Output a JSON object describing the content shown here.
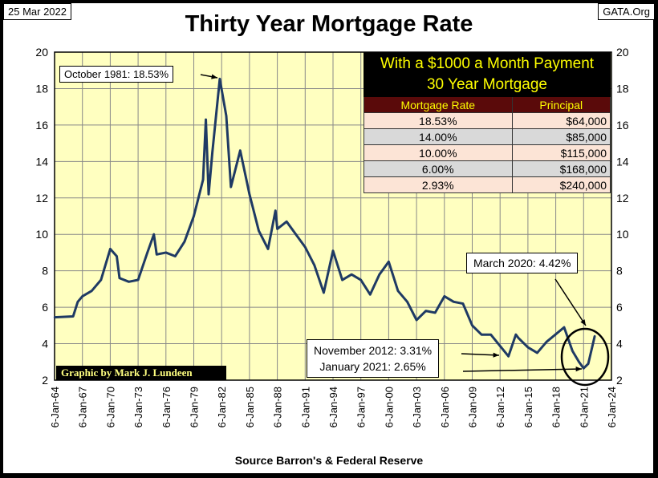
{
  "header": {
    "date": "25 Mar 2022",
    "site": "GATA.Org"
  },
  "chart_data": {
    "type": "line",
    "title": "Thirty Year Mortgage Rate",
    "source": "Source Barron's & Federal Reserve",
    "credit": "Graphic by Mark J. Lundeen",
    "ylim": [
      2,
      20
    ],
    "yticks": [
      "2",
      "4",
      "6",
      "8",
      "10",
      "12",
      "14",
      "16",
      "18",
      "20"
    ],
    "xlim": [
      1964,
      2024
    ],
    "xticks": [
      "6-Jan-64",
      "6-Jan-67",
      "6-Jan-70",
      "6-Jan-73",
      "6-Jan-76",
      "6-Jan-79",
      "6-Jan-82",
      "6-Jan-85",
      "6-Jan-88",
      "6-Jan-91",
      "6-Jan-94",
      "6-Jan-97",
      "6-Jan-00",
      "6-Jan-03",
      "6-Jan-06",
      "6-Jan-09",
      "6-Jan-12",
      "6-Jan-15",
      "6-Jan-18",
      "6-Jan-21",
      "6-Jan-24"
    ],
    "grid": true,
    "line_color": "#1f3a64",
    "series": [
      {
        "name": "30 Year Mortgage Rate",
        "x": [
          1964,
          1966,
          1966.5,
          1967,
          1968,
          1969,
          1970,
          1970.7,
          1971,
          1972,
          1973,
          1974,
          1974.7,
          1975,
          1976,
          1977,
          1978,
          1979,
          1980,
          1980.3,
          1980.6,
          1981,
          1981.8,
          1982.5,
          1983,
          1984,
          1985,
          1986,
          1987,
          1987.8,
          1988,
          1989,
          1990,
          1991,
          1992,
          1993,
          1994,
          1995,
          1996,
          1997,
          1998,
          1999,
          2000,
          2001,
          2002,
          2003,
          2004,
          2005,
          2006,
          2007,
          2008,
          2009,
          2010,
          2011,
          2012.9,
          2013.7,
          2014,
          2015,
          2016,
          2017,
          2018.9,
          2019.8,
          2020.5,
          2021.0,
          2021.5,
          2022.2
        ],
        "y": [
          5.45,
          5.5,
          6.3,
          6.6,
          6.9,
          7.5,
          9.2,
          8.8,
          7.6,
          7.4,
          7.5,
          9.0,
          10.0,
          8.9,
          9.0,
          8.8,
          9.6,
          11.0,
          13.0,
          16.3,
          12.2,
          14.5,
          18.53,
          16.5,
          12.6,
          14.6,
          12.2,
          10.2,
          9.2,
          11.3,
          10.3,
          10.7,
          10.0,
          9.3,
          8.3,
          6.8,
          9.1,
          7.5,
          7.8,
          7.5,
          6.7,
          7.8,
          8.5,
          6.9,
          6.3,
          5.3,
          5.8,
          5.7,
          6.6,
          6.3,
          6.2,
          5.0,
          4.5,
          4.5,
          3.31,
          4.5,
          4.3,
          3.8,
          3.5,
          4.1,
          4.9,
          3.6,
          3.0,
          2.65,
          2.9,
          4.42
        ]
      }
    ],
    "annotations": [
      "October 1981: 18.53%",
      "March 2020: 4.42%",
      "November 2012: 3.31%",
      "January 2021: 2.65%"
    ],
    "table": {
      "title1": "With a $1000 a Month Payment",
      "title2": "30 Year Mortgage",
      "headers": [
        "Mortgage Rate",
        "Principal"
      ],
      "rows": [
        [
          "18.53%",
          "$64,000"
        ],
        [
          "14.00%",
          "$85,000"
        ],
        [
          "10.00%",
          "$115,000"
        ],
        [
          "6.00%",
          "$168,000"
        ],
        [
          "2.93%",
          "$240,000"
        ]
      ]
    }
  }
}
